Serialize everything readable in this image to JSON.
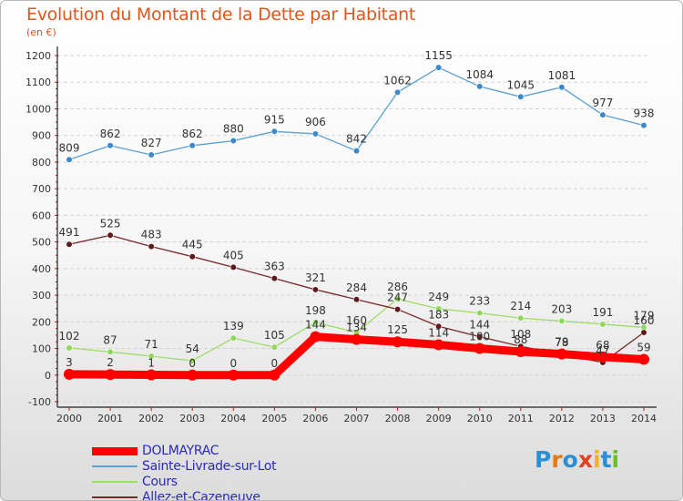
{
  "title": "Evolution du Montant de la Dette par Habitant",
  "subtitle": "(en €)",
  "logo": {
    "text": "Proxiti",
    "letters": [
      "P",
      "r",
      "o",
      "x",
      "i",
      "t",
      "i"
    ],
    "colors": [
      "#2a8fd4",
      "#e07a1a",
      "#2a8fd4",
      "#e0421e",
      "#f2b21a",
      "#2a8fd4",
      "#6cbf2a"
    ]
  },
  "chart_data": {
    "type": "line",
    "x": [
      2000,
      2001,
      2002,
      2003,
      2004,
      2005,
      2006,
      2007,
      2008,
      2009,
      2010,
      2011,
      2012,
      2013,
      2014
    ],
    "x_tick_labels": [
      "2000",
      "2001",
      "2002",
      "2003",
      "2004",
      "2005",
      "2006",
      "2007",
      "2008",
      "2009",
      "2010",
      "2011",
      "2012",
      "2013",
      "2014"
    ],
    "ylim": [
      -100,
      1200
    ],
    "y_ticks": [
      -100,
      0,
      100,
      200,
      300,
      400,
      500,
      600,
      700,
      800,
      900,
      1000,
      1100,
      1200
    ],
    "y_tick_labels": [
      "-100",
      "0",
      "100",
      "200",
      "300",
      "400",
      "500",
      "600",
      "700",
      "800",
      "900",
      "1000",
      "1100",
      "1200"
    ],
    "grid": "horizontal",
    "legend_position": "bottom-left",
    "series": [
      {
        "name": "DOLMAYRAC",
        "color": "#ff0000",
        "marker": "#ff0000",
        "width": 9,
        "values": [
          3,
          2,
          1,
          0,
          0,
          0,
          144,
          134,
          125,
          114,
          100,
          88,
          79,
          68,
          59
        ],
        "labels": [
          "3",
          "2",
          "1",
          "0",
          "0",
          "0",
          "144",
          "134",
          "125",
          "114",
          "100",
          "88",
          "79",
          "68",
          "59"
        ]
      },
      {
        "name": "Sainte-Livrade-sur-Lot",
        "color": "#5aa0d2",
        "marker": "#3c88c8",
        "width": 1.3,
        "values": [
          809,
          862,
          827,
          862,
          880,
          915,
          906,
          842,
          1062,
          1155,
          1084,
          1045,
          1081,
          977,
          938
        ],
        "labels": [
          "809",
          "862",
          "827",
          "862",
          "880",
          "915",
          "906",
          "842",
          "1062",
          "1155",
          "1084",
          "1045",
          "1081",
          "977",
          "938"
        ]
      },
      {
        "name": "Cours",
        "color": "#9ddc6a",
        "marker": "#8fd85a",
        "width": 1.3,
        "values": [
          102,
          87,
          71,
          54,
          139,
          105,
          198,
          160,
          286,
          249,
          233,
          214,
          203,
          191,
          179
        ],
        "labels": [
          "102",
          "87",
          "71",
          "54",
          "139",
          "105",
          "198",
          "160",
          "286",
          "249",
          "233",
          "214",
          "203",
          "191",
          "179"
        ]
      },
      {
        "name": "Allez-et-Cazeneuve",
        "color": "#7a2a2a",
        "marker": "#5e1a1a",
        "width": 1.3,
        "values": [
          491,
          525,
          483,
          445,
          405,
          363,
          321,
          284,
          247,
          183,
          144,
          108,
          78,
          47,
          160
        ],
        "labels": [
          "491",
          "525",
          "483",
          "445",
          "405",
          "363",
          "321",
          "284",
          "247",
          "183",
          "144",
          "108",
          "78",
          "47",
          "160"
        ]
      }
    ]
  }
}
